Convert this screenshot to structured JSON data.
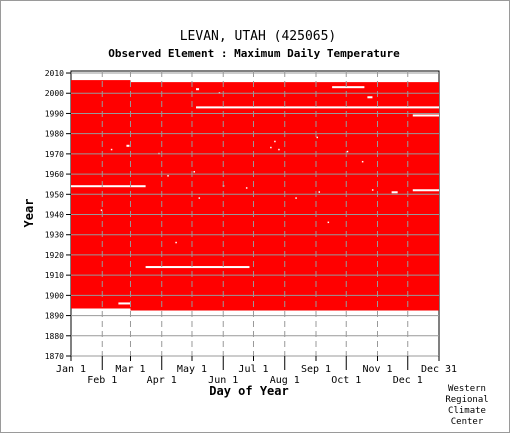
{
  "chart_data": {
    "type": "heatmap",
    "title": "LEVAN, UTAH   (425065)",
    "subtitle": "Observed Element : Maximum Daily Temperature",
    "xlabel": "Day of Year",
    "ylabel": "Year",
    "x_range_days": [
      1,
      366
    ],
    "ylim": [
      1870,
      2011
    ],
    "y_ticks": [
      1870,
      1880,
      1890,
      1900,
      1910,
      1920,
      1930,
      1940,
      1950,
      1960,
      1970,
      1980,
      1990,
      2000,
      2010
    ],
    "x_ticks_top_row": [
      {
        "label": "Jan 1",
        "day": 1
      },
      {
        "label": "Mar 1",
        "day": 60
      },
      {
        "label": "May 1",
        "day": 121
      },
      {
        "label": "Jul 1",
        "day": 182
      },
      {
        "label": "Sep 1",
        "day": 244
      },
      {
        "label": "Nov 1",
        "day": 305
      },
      {
        "label": "Dec 31",
        "day": 366
      }
    ],
    "x_ticks_bottom_row": [
      {
        "label": "Feb 1",
        "day": 32
      },
      {
        "label": "Apr 1",
        "day": 91
      },
      {
        "label": "Jun 1",
        "day": 152
      },
      {
        "label": "Aug 1",
        "day": 213
      },
      {
        "label": "Oct 1",
        "day": 274
      },
      {
        "label": "Dec 1",
        "day": 335
      }
    ],
    "grid": true,
    "data_color": "#ff0000",
    "observed_blocks": [
      {
        "from_year": 1894,
        "to_year": 2006,
        "from_day": 1,
        "to_day": 60
      },
      {
        "from_year": 1893,
        "to_year": 2005,
        "from_day": 60,
        "to_day": 366
      }
    ],
    "missing_segments": [
      {
        "year": 1954,
        "from_day": 1,
        "to_day": 75
      },
      {
        "year": 1914,
        "from_day": 75,
        "to_day": 178
      },
      {
        "year": 1993,
        "from_day": 125,
        "to_day": 366
      },
      {
        "year": 2003,
        "from_day": 260,
        "to_day": 292
      },
      {
        "year": 2002,
        "from_day": 125,
        "to_day": 128
      },
      {
        "year": 1998,
        "from_day": 295,
        "to_day": 300
      },
      {
        "year": 1989,
        "from_day": 340,
        "to_day": 366
      },
      {
        "year": 1952,
        "from_day": 340,
        "to_day": 366
      },
      {
        "year": 1951,
        "from_day": 319,
        "to_day": 325
      },
      {
        "year": 1974,
        "from_day": 56,
        "to_day": 59
      },
      {
        "year": 1896,
        "from_day": 48,
        "to_day": 60
      }
    ],
    "scattered_missing_days": [
      {
        "year": 1972,
        "day": 41
      },
      {
        "year": 1942,
        "day": 31
      },
      {
        "year": 1970,
        "day": 88
      },
      {
        "year": 1959,
        "day": 97
      },
      {
        "year": 1926,
        "day": 105
      },
      {
        "year": 1961,
        "day": 123
      },
      {
        "year": 1948,
        "day": 128
      },
      {
        "year": 1954,
        "day": 152
      },
      {
        "year": 2000,
        "day": 148
      },
      {
        "year": 1953,
        "day": 175
      },
      {
        "year": 1973,
        "day": 199
      },
      {
        "year": 1976,
        "day": 203
      },
      {
        "year": 1948,
        "day": 224
      },
      {
        "year": 1972,
        "day": 207
      },
      {
        "year": 1978,
        "day": 245
      },
      {
        "year": 1951,
        "day": 247
      },
      {
        "year": 1936,
        "day": 256
      },
      {
        "year": 1971,
        "day": 275
      },
      {
        "year": 1966,
        "day": 290
      },
      {
        "year": 1952,
        "day": 300
      }
    ]
  },
  "credit": [
    "Western",
    "Regional",
    "Climate",
    "Center"
  ]
}
